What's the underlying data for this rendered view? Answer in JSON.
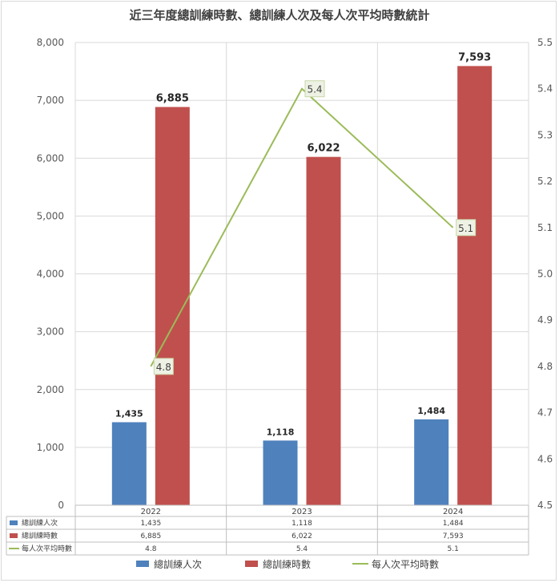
{
  "chart_data": {
    "type": "bar",
    "title": "近三年度總訓練時數、總訓練人次及每人次平均時數統計",
    "categories": [
      "2022",
      "2023",
      "2024"
    ],
    "series": [
      {
        "name": "總訓練人次",
        "kind": "bar",
        "axis": "left",
        "color": "#4f81bd",
        "values": [
          1435,
          1118,
          1484
        ],
        "labels": [
          "1,435",
          "1,118",
          "1,484"
        ]
      },
      {
        "name": "總訓練時數",
        "kind": "bar",
        "axis": "left",
        "color": "#c0504d",
        "values": [
          6885,
          6022,
          7593
        ],
        "labels": [
          "6,885",
          "6,022",
          "7,593"
        ]
      },
      {
        "name": "每人次平均時數",
        "kind": "line",
        "axis": "right",
        "color": "#9bbb59",
        "values": [
          4.8,
          5.4,
          5.1
        ],
        "labels": [
          "4.8",
          "5.4",
          "5.1"
        ]
      }
    ],
    "ylim_left": [
      0,
      8000
    ],
    "ylim_right": [
      4.5,
      5.5
    ],
    "left_ticks": [
      "0",
      "1,000",
      "2,000",
      "3,000",
      "4,000",
      "5,000",
      "6,000",
      "7,000",
      "8,000"
    ],
    "right_ticks": [
      "4.5",
      "4.6",
      "4.7",
      "4.8",
      "4.9",
      "5.0",
      "5.1",
      "5.2",
      "5.3",
      "5.4",
      "5.5"
    ],
    "grid": true,
    "data_table": true,
    "legend_position": "bottom"
  }
}
